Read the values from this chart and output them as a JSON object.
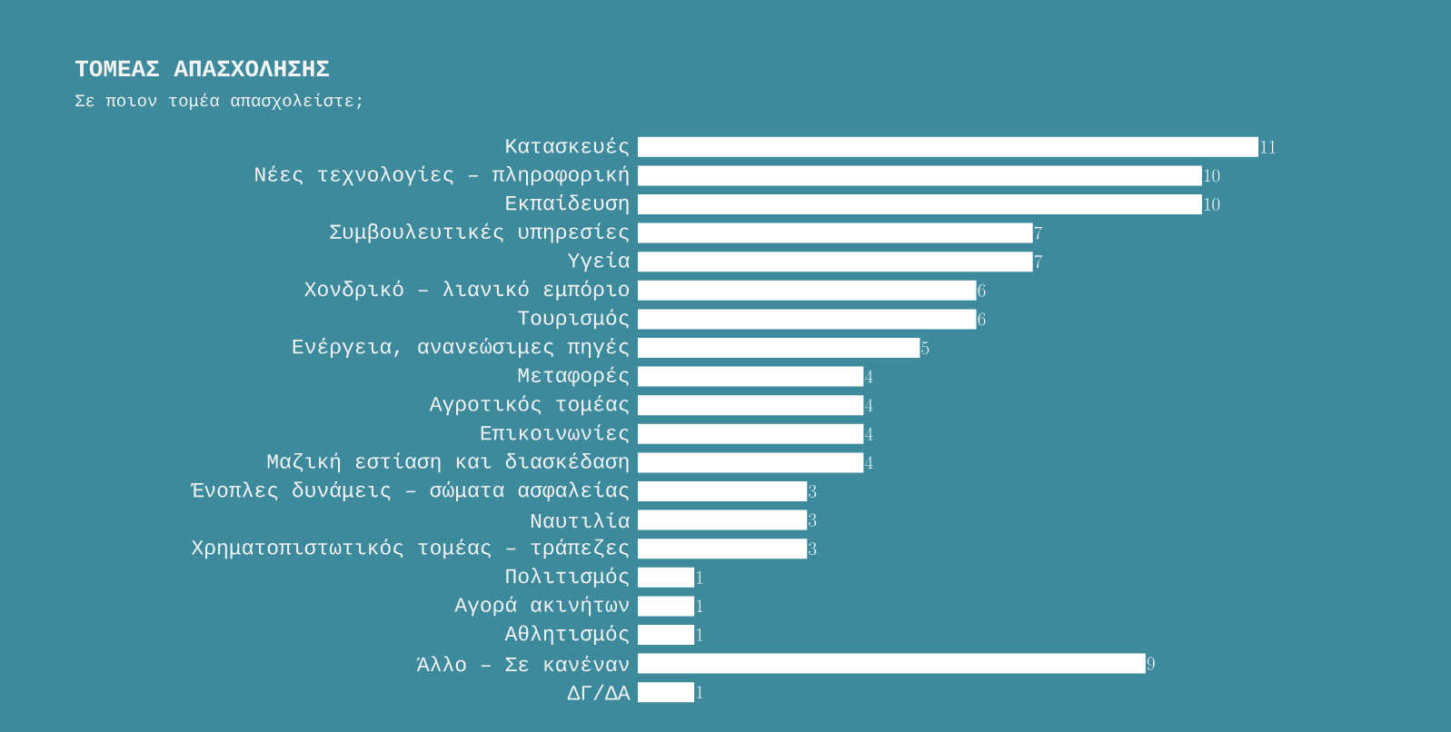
{
  "chart_data": {
    "type": "bar",
    "orientation": "horizontal",
    "title": "ΤΟΜΕΑΣ ΑΠΑΣΧΟΛΗΣΗΣ",
    "subtitle": "Σε ποιον τομέα απασχολείστε;",
    "categories": [
      "Κατασκευές",
      "Νέες τεχνολογίες – πληροφορική",
      "Εκπαίδευση",
      "Συμβουλευτικές υπηρεσίες",
      "Υγεία",
      "Χονδρικό – λιανικό εμπόριο",
      "Τουρισμός",
      "Ενέργεια, ανανεώσιμες πηγές",
      "Μεταφορές",
      "Αγροτικός τομέας",
      "Επικοινωνίες",
      "Μαζική εστίαση και διασκέδαση",
      "Ένοπλες δυνάμεις – σώματα ασφαλείας",
      "Ναυτιλία",
      "Χρηματοπιστωτικός τομέας – τράπεζες",
      "Πολιτισμός",
      "Αγορά ακινήτων",
      "Αθλητισμός",
      "Άλλο – Σε κανέναν",
      "ΔΓ/ΔΑ"
    ],
    "values": [
      11,
      10,
      10,
      7,
      7,
      6,
      6,
      5,
      4,
      4,
      4,
      4,
      3,
      3,
      3,
      1,
      1,
      1,
      9,
      1
    ],
    "color": "#ffffff",
    "data_labels": true,
    "tick_labels": "y"
  }
}
